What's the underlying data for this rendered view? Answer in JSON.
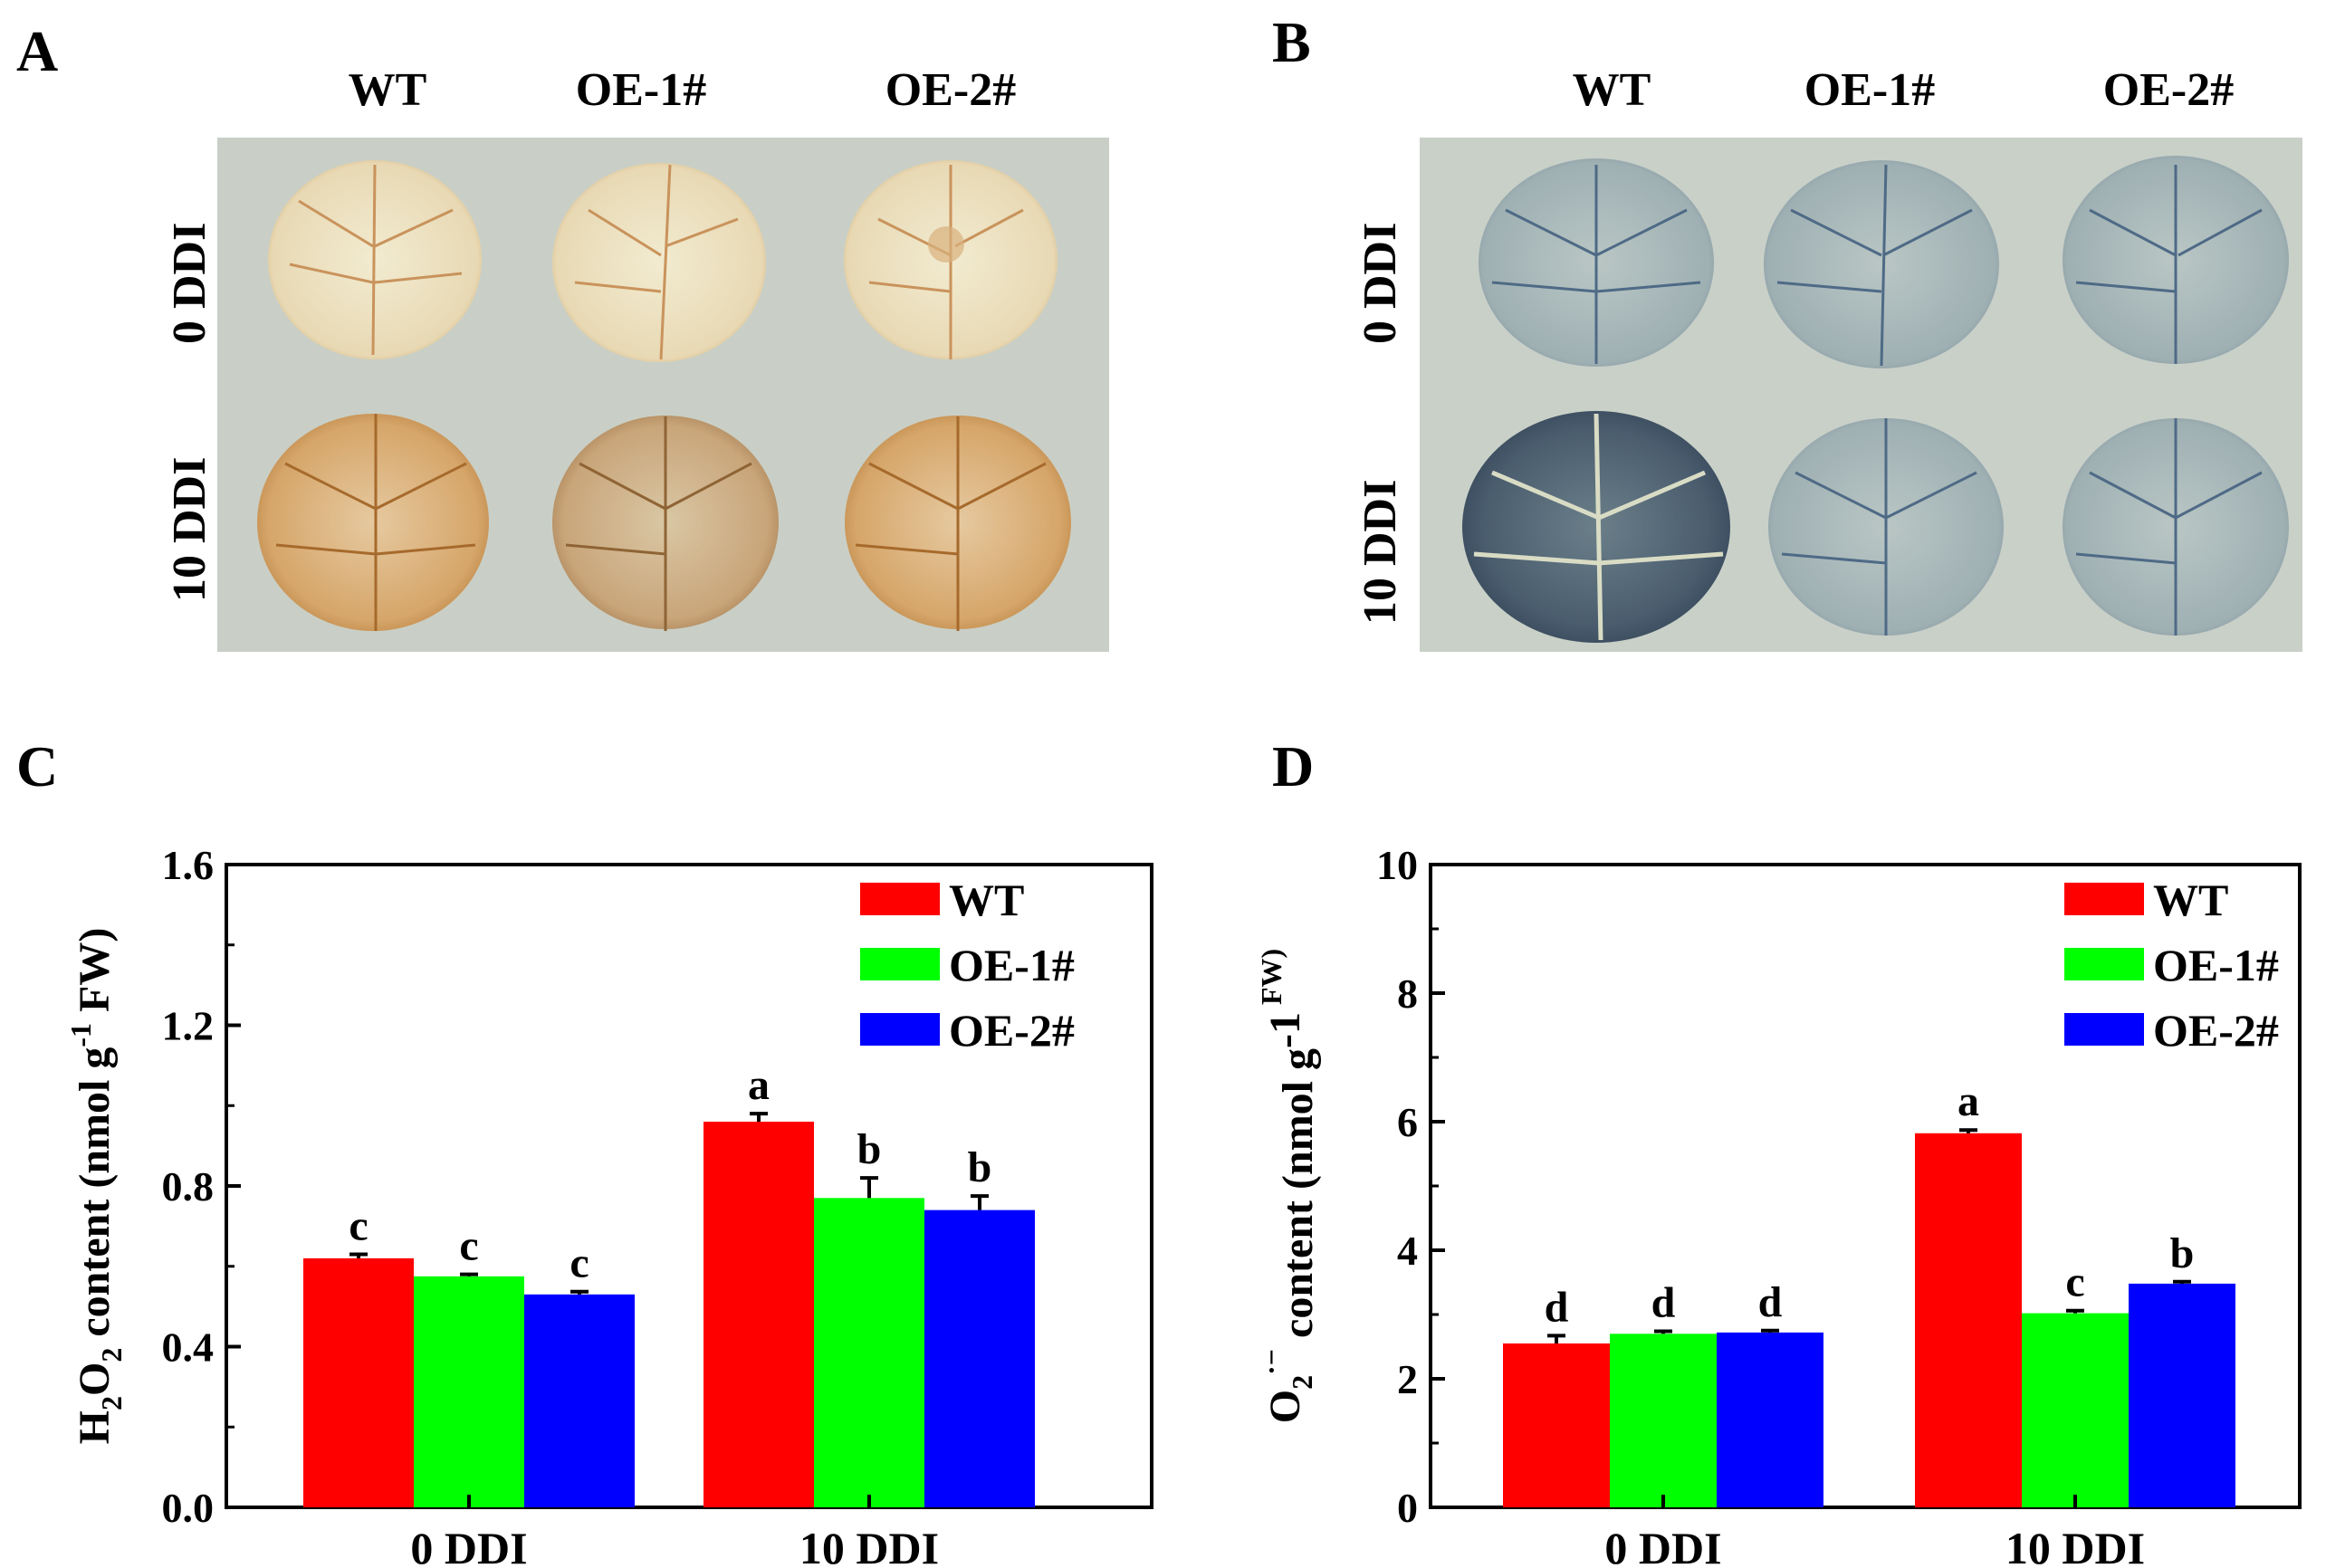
{
  "panel_a": {
    "letter": "A",
    "columns": [
      "WT",
      "OE-1#",
      "OE-2#"
    ],
    "rows": [
      "0 DDI",
      "10 DDI"
    ]
  },
  "panel_b": {
    "letter": "B",
    "columns": [
      "WT",
      "OE-1#",
      "OE-2#"
    ],
    "rows": [
      "0 DDI",
      "10 DDI"
    ]
  },
  "chart_data": [
    {
      "panel": "C",
      "type": "bar",
      "categories": [
        "0 DDI",
        "10 DDI"
      ],
      "series": [
        {
          "name": "WT",
          "color": "#ff0000",
          "values": [
            0.62,
            0.96
          ],
          "errors": [
            0.01,
            0.02
          ],
          "letters": [
            "c",
            "a"
          ]
        },
        {
          "name": "OE-1#",
          "color": "#00ff00",
          "values": [
            0.575,
            0.77
          ],
          "errors": [
            0.005,
            0.05
          ],
          "letters": [
            "c",
            "b"
          ]
        },
        {
          "name": "OE-2#",
          "color": "#0000ff",
          "values": [
            0.53,
            0.74
          ],
          "errors": [
            0.007,
            0.035
          ],
          "letters": [
            "c",
            "b"
          ]
        }
      ],
      "ylim": [
        0,
        1.6
      ],
      "yticks": [
        "0.0",
        "0.4",
        "0.8",
        "1.2",
        "1.6"
      ],
      "ylabel_parts": [
        "H",
        "2",
        "O",
        "2",
        " content (nmol g",
        "-1",
        " FW)"
      ],
      "legend_position": "top-right"
    },
    {
      "panel": "D",
      "type": "bar",
      "categories": [
        "0 DDI",
        "10 DDI"
      ],
      "series": [
        {
          "name": "WT",
          "color": "#ff0000",
          "values": [
            2.55,
            5.82
          ],
          "errors": [
            0.12,
            0.05
          ],
          "letters": [
            "d",
            "a"
          ]
        },
        {
          "name": "OE-1#",
          "color": "#00ff00",
          "values": [
            2.7,
            3.02
          ],
          "errors": [
            0.04,
            0.04
          ],
          "letters": [
            "d",
            "c"
          ]
        },
        {
          "name": "OE-2#",
          "color": "#0000ff",
          "values": [
            2.72,
            3.48
          ],
          "errors": [
            0.03,
            0.03
          ],
          "letters": [
            "d",
            "b"
          ]
        }
      ],
      "ylim": [
        0,
        10
      ],
      "yticks": [
        "0",
        "2",
        "4",
        "6",
        "8",
        "10"
      ],
      "ylabel_parts": [
        "O",
        "2",
        "·−",
        " content (nmol g",
        "-1",
        " FW)"
      ],
      "legend_position": "top-right"
    }
  ]
}
